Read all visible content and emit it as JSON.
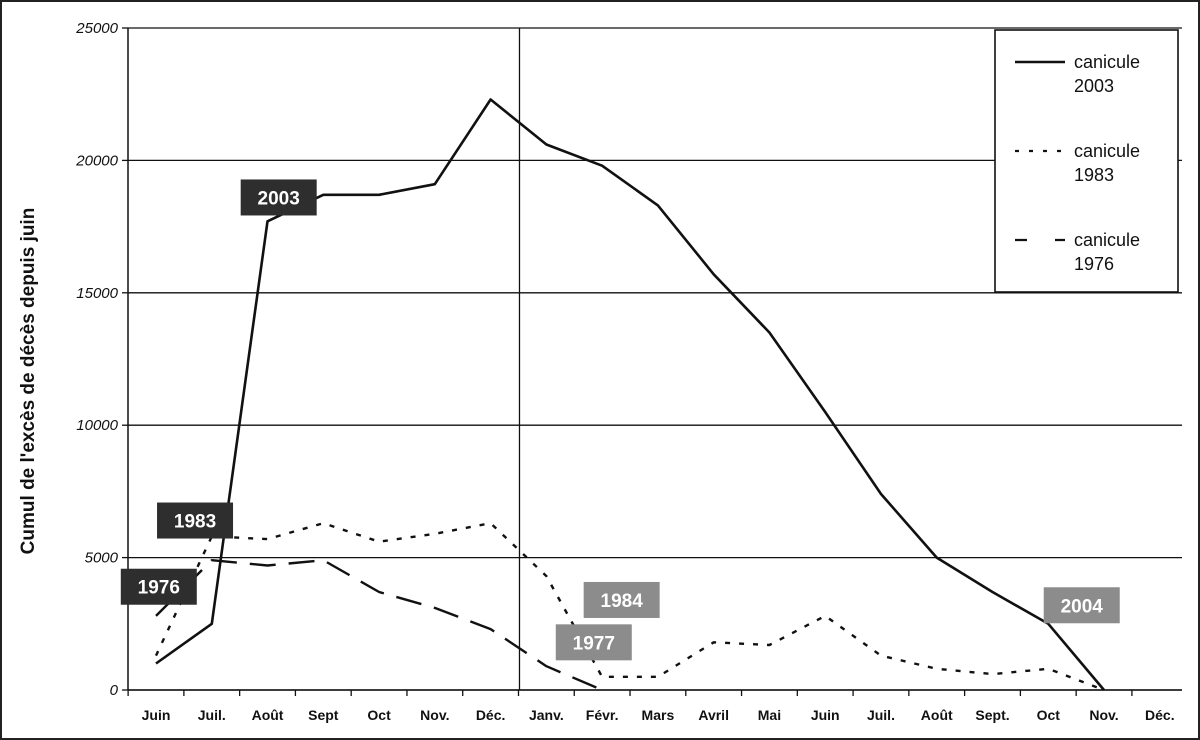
{
  "chart_data": {
    "type": "line",
    "ylabel": "Cumul de l'excès de décès depuis juin",
    "xlabel": "",
    "ylim": [
      0,
      25000
    ],
    "yticks": [
      "0",
      "5000",
      "10000",
      "15000",
      "20000",
      "25000"
    ],
    "categories": [
      "Juin",
      "Juil.",
      "Août",
      "Sept",
      "Oct",
      "Nov.",
      "Déc.",
      "Janv.",
      "Févr.",
      "Mars",
      "Avril",
      "Mai",
      "Juin",
      "Juil.",
      "Août",
      "Sept.",
      "Oct",
      "Nov.",
      "Déc."
    ],
    "grid": "horizontal",
    "year_divider_between": [
      "Déc.",
      "Janv."
    ],
    "legend_position": "top-right",
    "series": [
      {
        "name": "canicule 2003",
        "legend_lines": [
          "canicule",
          "2003"
        ],
        "style": "solid",
        "values": [
          1000,
          2500,
          17700,
          18700,
          18700,
          19100,
          22300,
          20600,
          19800,
          18300,
          15700,
          13500,
          10500,
          7400,
          5000,
          3700,
          2500,
          0,
          null
        ]
      },
      {
        "name": "canicule 1983",
        "legend_lines": [
          "canicule",
          "1983"
        ],
        "style": "dotted",
        "values": [
          1300,
          5800,
          5700,
          6300,
          5600,
          5900,
          6300,
          4300,
          500,
          500,
          1800,
          1700,
          2800,
          1300,
          800,
          600,
          800,
          0,
          null
        ]
      },
      {
        "name": "canicule 1976",
        "legend_lines": [
          "canicule",
          "1976"
        ],
        "style": "dashed",
        "values": [
          2800,
          4900,
          4700,
          4900,
          3700,
          3100,
          2300,
          900,
          0,
          null,
          null,
          null,
          null,
          null,
          null,
          null,
          null,
          null,
          null
        ]
      }
    ],
    "annotations": [
      {
        "text": "2003",
        "style": "dark",
        "x_index": 2.2,
        "y": 18600
      },
      {
        "text": "1983",
        "style": "dark",
        "x_index": 0.7,
        "y": 6400
      },
      {
        "text": "1976",
        "style": "dark",
        "x_index": 0.05,
        "y": 3900
      },
      {
        "text": "1984",
        "style": "gray",
        "x_index": 8.35,
        "y": 3400
      },
      {
        "text": "1977",
        "style": "gray",
        "x_index": 7.85,
        "y": 1800
      },
      {
        "text": "2004",
        "style": "gray",
        "x_index": 16.6,
        "y": 3200
      }
    ]
  }
}
